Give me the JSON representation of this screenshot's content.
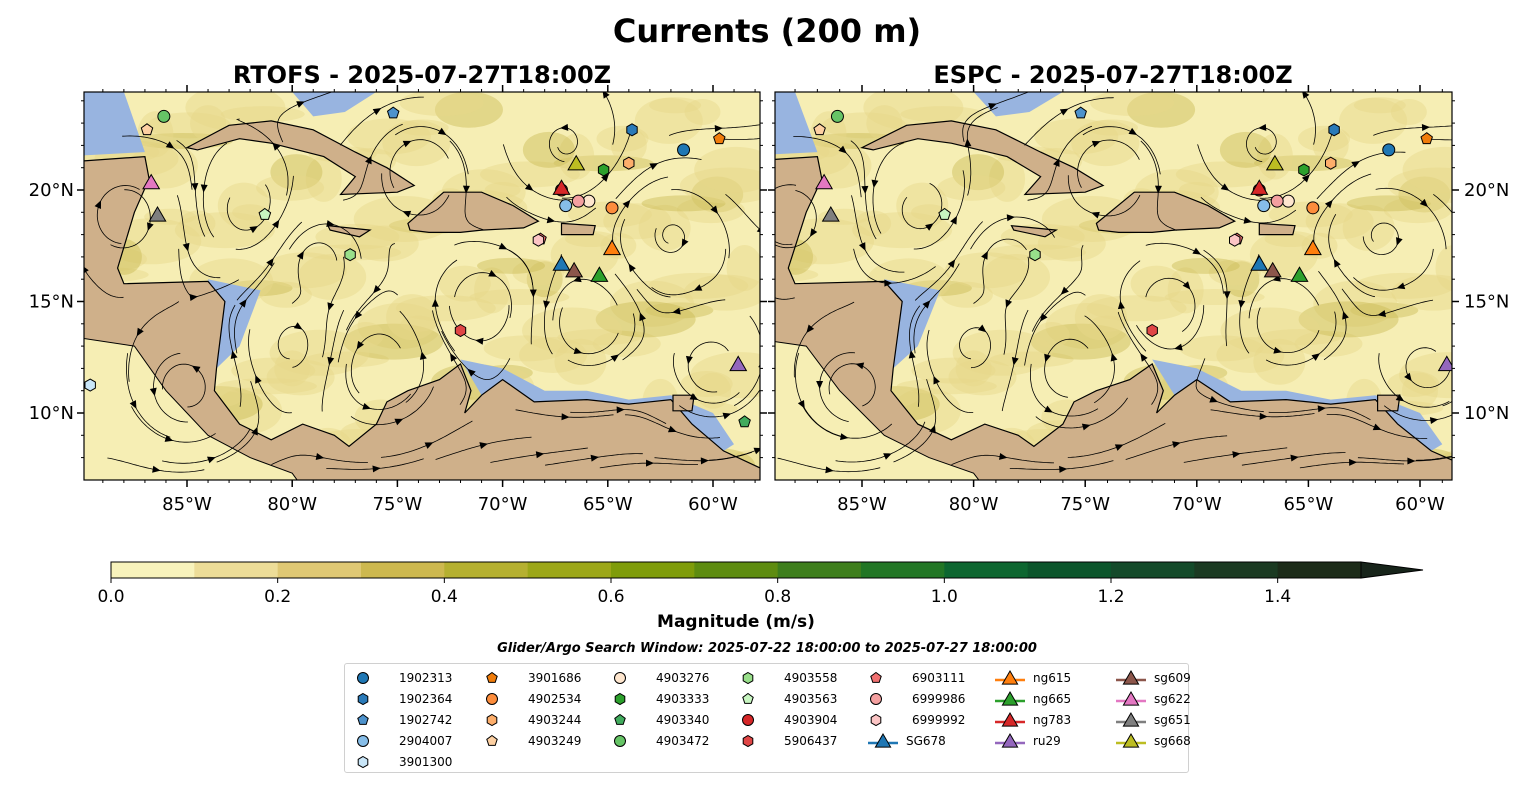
{
  "figure": {
    "title": "Currents (200 m)",
    "search_window": "Glider/Argo Search Window: 2025-07-22 18:00:00 to 2025-07-27 18:00:00"
  },
  "chart_data": [
    {
      "type": "map",
      "title": "RTOFS - 2025-07-27T18:00Z",
      "xlim": [
        -89.9,
        -57.8
      ],
      "ylim": [
        7.0,
        24.4
      ]
    },
    {
      "type": "map",
      "title": "ESPC - 2025-07-27T18:00Z",
      "xlim": [
        -88.9,
        -58.6
      ],
      "ylim": [
        7.0,
        24.4
      ]
    }
  ],
  "axes": {
    "lon_ticks": [
      {
        "value": -85,
        "label": "85°W"
      },
      {
        "value": -80,
        "label": "80°W"
      },
      {
        "value": -75,
        "label": "75°W"
      },
      {
        "value": -70,
        "label": "70°W"
      },
      {
        "value": -65,
        "label": "65°W"
      },
      {
        "value": -60,
        "label": "60°W"
      }
    ],
    "lat_ticks": [
      {
        "value": 20,
        "label": "20°N"
      },
      {
        "value": 15,
        "label": "15°N"
      },
      {
        "value": 10,
        "label": "10°N"
      }
    ]
  },
  "colorbar": {
    "label": "Magnitude (m/s)",
    "range": [
      0,
      1.5
    ],
    "ticks": [
      "0.0",
      "0.2",
      "0.4",
      "0.6",
      "0.8",
      "1.0",
      "1.2",
      "1.4"
    ],
    "colors": [
      "#f8f3bc",
      "#eddd98",
      "#dfc874",
      "#cdb84f",
      "#b5b030",
      "#9ca718",
      "#7f9c0a",
      "#5e8c10",
      "#3e7e1c",
      "#227625",
      "#0d6630",
      "#0b552b",
      "#144a2a",
      "#1b3a22",
      "#1c2b19"
    ],
    "extend_color": "#17241a"
  },
  "legend": [
    {
      "label": "1902313",
      "shape": "circle",
      "color": "#1f77b4",
      "lon": -61.4,
      "lat": 21.8
    },
    {
      "label": "1902364",
      "shape": "hexagon",
      "color": "#2a7ab8",
      "lon": -63.85,
      "lat": 22.7
    },
    {
      "label": "1902742",
      "shape": "pentagon",
      "color": "#4d92cc",
      "lon": -75.2,
      "lat": 23.45
    },
    {
      "label": "2904007",
      "shape": "circle",
      "color": "#86bde8",
      "lon": -67.0,
      "lat": 19.3
    },
    {
      "label": "3901300",
      "shape": "hexagon",
      "color": "#c9e6f8",
      "lon": -89.6,
      "lat": 11.25
    },
    {
      "label": "3901686",
      "shape": "pentagon",
      "color": "#f07c0a",
      "lon": -59.7,
      "lat": 22.3
    },
    {
      "label": "4902534",
      "shape": "circle",
      "color": "#fd8d3c",
      "lon": -64.8,
      "lat": 19.2
    },
    {
      "label": "4903244",
      "shape": "hexagon",
      "color": "#fdae6b",
      "lon": -64.0,
      "lat": 21.2
    },
    {
      "label": "4903249",
      "shape": "pentagon",
      "color": "#fdd0a2",
      "lon": -86.9,
      "lat": 22.7
    },
    {
      "label": "4903276",
      "shape": "circle",
      "color": "#fee6ce",
      "lon": -65.9,
      "lat": 19.5
    },
    {
      "label": "4903333",
      "shape": "hexagon",
      "color": "#2ca02c",
      "lon": -65.2,
      "lat": 20.9
    },
    {
      "label": "4903340",
      "shape": "pentagon",
      "color": "#41ab5d",
      "lon": -58.5,
      "lat": 9.6
    },
    {
      "label": "4903472",
      "shape": "circle",
      "color": "#66c466",
      "lon": -86.1,
      "lat": 23.3
    },
    {
      "label": "4903558",
      "shape": "hexagon",
      "color": "#98df8a",
      "lon": -77.25,
      "lat": 17.1
    },
    {
      "label": "4903563",
      "shape": "pentagon",
      "color": "#c7f5c0",
      "lon": -81.3,
      "lat": 18.9
    },
    {
      "label": "4903904",
      "shape": "circle",
      "color": "#d62728",
      "lon": -67.2,
      "lat": 20.0
    },
    {
      "label": "5906437",
      "shape": "hexagon",
      "color": "#e04646",
      "lon": -72.0,
      "lat": 13.7
    },
    {
      "label": "6903111",
      "shape": "pentagon",
      "color": "#f07070",
      "lon": -68.2,
      "lat": 17.8
    },
    {
      "label": "6999986",
      "shape": "circle",
      "color": "#f4a0a0",
      "lon": -66.4,
      "lat": 19.5
    },
    {
      "label": "6999992",
      "shape": "hexagon",
      "color": "#fcc5c5",
      "lon": -68.3,
      "lat": 17.75
    },
    {
      "label": "SG678",
      "shape": "triangle",
      "color": "#1f77b4",
      "lon": -67.2,
      "lat": 16.7
    },
    {
      "label": "ng615",
      "shape": "triangle",
      "color": "#ff7f0e",
      "lon": -64.8,
      "lat": 17.4
    },
    {
      "label": "ng665",
      "shape": "triangle",
      "color": "#2ca02c",
      "lon": -65.4,
      "lat": 16.2
    },
    {
      "label": "ng783",
      "shape": "triangle",
      "color": "#d62728",
      "lon": -67.2,
      "lat": 20.1
    },
    {
      "label": "ru29",
      "shape": "triangle",
      "color": "#9467bd",
      "lon": -58.8,
      "lat": 12.2
    },
    {
      "label": "sg609",
      "shape": "triangle",
      "color": "#8c564b",
      "lon": -66.6,
      "lat": 16.4
    },
    {
      "label": "sg622",
      "shape": "triangle",
      "color": "#e377c2",
      "lon": -86.7,
      "lat": 20.35
    },
    {
      "label": "sg651",
      "shape": "triangle",
      "color": "#7f7f7f",
      "lon": -86.4,
      "lat": 18.9
    },
    {
      "label": "sg668",
      "shape": "triangle",
      "color": "#bcbd22",
      "lon": -66.5,
      "lat": 21.2
    }
  ]
}
